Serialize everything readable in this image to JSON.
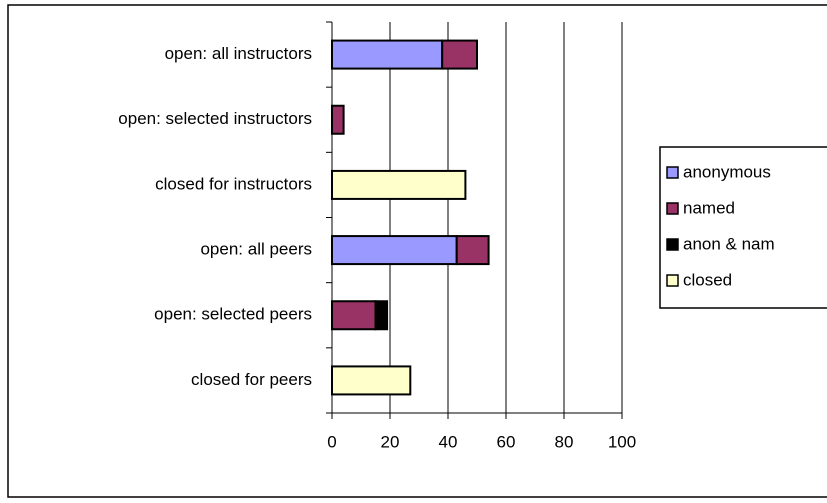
{
  "chart_data": {
    "type": "bar",
    "orientation": "horizontal",
    "stacked": true,
    "categories": [
      "open: all instructors",
      "open: selected instructors",
      "closed for instructors",
      "open: all peers",
      "open: selected peers",
      "closed for peers"
    ],
    "series": [
      {
        "name": "anonymous",
        "color": "#9999ff",
        "values": [
          38,
          0,
          0,
          43,
          0,
          0
        ]
      },
      {
        "name": "named",
        "color": "#993366",
        "values": [
          12,
          4,
          0,
          11,
          15,
          0
        ]
      },
      {
        "name": "anon & nam",
        "color": "#000000",
        "values": [
          0,
          0,
          0,
          0,
          4,
          0
        ]
      },
      {
        "name": "closed",
        "color": "#ffffcc",
        "values": [
          0,
          0,
          46,
          0,
          0,
          27
        ]
      }
    ],
    "xlim": [
      0,
      100
    ],
    "xticks": [
      0,
      20,
      40,
      60,
      80,
      100
    ],
    "grid": true,
    "legend": "right"
  }
}
